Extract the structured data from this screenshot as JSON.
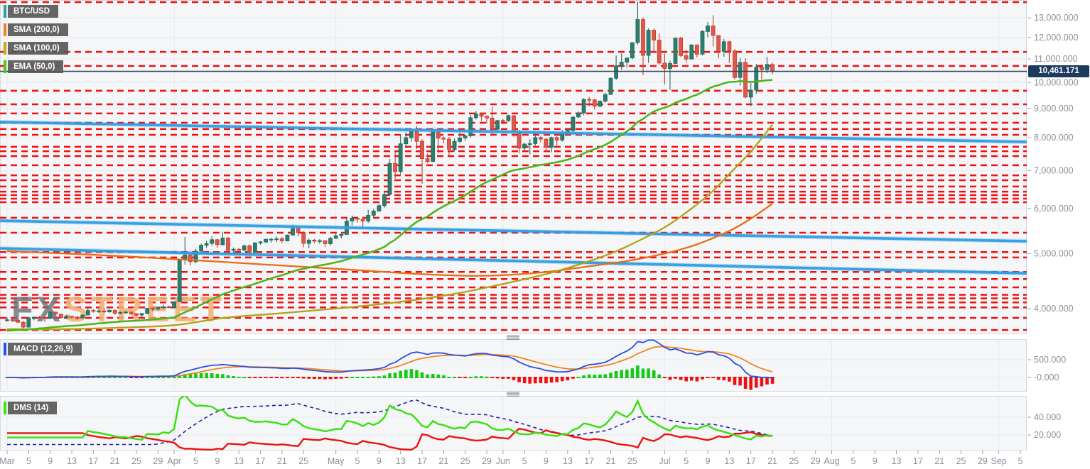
{
  "legend": {
    "main": [
      {
        "label": "BTC/USD",
        "color": "#2aa49a"
      },
      {
        "label": "SMA (200,0)",
        "color": "#f07d28"
      },
      {
        "label": "SMA (100,0)",
        "color": "#bfae12"
      },
      {
        "label": "EMA (50,0)",
        "color": "#52c41a"
      }
    ],
    "macd": {
      "label": "MACD (12,26,9)",
      "color": "#2153f5"
    },
    "dms": {
      "label": "DMS (14)",
      "color": "#39e510"
    }
  },
  "watermark": {
    "part1": "FX",
    "part2": "STREET"
  },
  "price_badge": "10,461.171",
  "axes": {
    "price_ticks": [
      {
        "label": "13,000.000",
        "value": 13000
      },
      {
        "label": "12,000.000",
        "value": 12000
      },
      {
        "label": "11,000.000",
        "value": 11000
      },
      {
        "label": "10,000.000",
        "value": 10000
      },
      {
        "label": "9,000.000",
        "value": 9000
      },
      {
        "label": "8,000.000",
        "value": 8000
      },
      {
        "label": "7,000.000",
        "value": 7000
      },
      {
        "label": "6,000.000",
        "value": 6000
      },
      {
        "label": "5,000.000",
        "value": 5000
      },
      {
        "label": "4,000.000",
        "value": 4000
      }
    ],
    "macd_ticks": [
      {
        "label": "500.000",
        "value": 500
      },
      {
        "label": "-0.000",
        "value": 0
      }
    ],
    "dms_ticks": [
      {
        "label": "40.000",
        "value": 40
      },
      {
        "label": "20.000",
        "value": 20
      }
    ],
    "x_ticks": [
      [
        "Mar",
        0
      ],
      [
        "5",
        4
      ],
      [
        "9",
        8
      ],
      [
        "13",
        12
      ],
      [
        "17",
        16
      ],
      [
        "21",
        20
      ],
      [
        "25",
        24
      ],
      [
        "29",
        28
      ],
      [
        "Apr",
        31
      ],
      [
        "5",
        35
      ],
      [
        "9",
        39
      ],
      [
        "13",
        43
      ],
      [
        "17",
        47
      ],
      [
        "21",
        51
      ],
      [
        "25",
        55
      ],
      [
        "May",
        61
      ],
      [
        "5",
        65
      ],
      [
        "9",
        69
      ],
      [
        "13",
        73
      ],
      [
        "17",
        77
      ],
      [
        "21",
        81
      ],
      [
        "25",
        85
      ],
      [
        "29",
        89
      ],
      [
        "Jun",
        92
      ],
      [
        "5",
        96
      ],
      [
        "9",
        100
      ],
      [
        "13",
        104
      ],
      [
        "17",
        108
      ],
      [
        "21",
        112
      ],
      [
        "25",
        116
      ],
      [
        "Jul",
        122
      ],
      [
        "5",
        126
      ],
      [
        "9",
        130
      ],
      [
        "13",
        134
      ],
      [
        "17",
        138
      ],
      [
        "21",
        142
      ],
      [
        "25",
        146
      ],
      [
        "29",
        150
      ],
      [
        "Aug",
        153
      ],
      [
        "5",
        157
      ],
      [
        "9",
        161
      ],
      [
        "13",
        165
      ],
      [
        "17",
        169
      ],
      [
        "21",
        173
      ],
      [
        "25",
        177
      ],
      [
        "29",
        181
      ],
      [
        "Sep",
        184
      ],
      [
        "5",
        188
      ]
    ]
  },
  "chart_data": {
    "type": "candlestick",
    "title": "BTC/USD",
    "start_date": "2019-03-01",
    "interval": "1D",
    "scale": "log",
    "ylim_price": [
      3620,
      13970
    ],
    "current_price": 10461.171,
    "candles": [
      [
        3814,
        3861,
        3798,
        3823
      ],
      [
        3823,
        3837,
        3792,
        3816
      ],
      [
        3816,
        3823,
        3773,
        3785
      ],
      [
        3785,
        3805,
        3688,
        3711
      ],
      [
        3711,
        3873,
        3702,
        3855
      ],
      [
        3855,
        3878,
        3816,
        3858
      ],
      [
        3858,
        3882,
        3836,
        3857
      ],
      [
        3857,
        3877,
        3789,
        3845
      ],
      [
        3845,
        3957,
        3832,
        3943
      ],
      [
        3943,
        3955,
        3896,
        3911
      ],
      [
        3911,
        3917,
        3842,
        3856
      ],
      [
        3856,
        3900,
        3836,
        3877
      ],
      [
        3877,
        3888,
        3841,
        3862
      ],
      [
        3862,
        3880,
        3820,
        3851
      ],
      [
        3851,
        3907,
        3839,
        3897
      ],
      [
        3897,
        4010,
        3891,
        3970
      ],
      [
        3970,
        3988,
        3935,
        3961
      ],
      [
        3961,
        3994,
        3930,
        3963
      ],
      [
        3963,
        3991,
        3926,
        3947
      ],
      [
        3947,
        3989,
        3932,
        3973
      ],
      [
        3973,
        3983,
        3905,
        3925
      ],
      [
        3925,
        3953,
        3911,
        3940
      ],
      [
        3940,
        3957,
        3918,
        3944
      ],
      [
        3944,
        3954,
        3897,
        3918
      ],
      [
        3918,
        3928,
        3873,
        3897
      ],
      [
        3897,
        3929,
        3868,
        3921
      ],
      [
        3921,
        4008,
        3912,
        4004
      ],
      [
        4004,
        4018,
        3960,
        3994
      ],
      [
        3994,
        4027,
        3964,
        4026
      ],
      [
        4026,
        4069,
        3986,
        4029
      ],
      [
        4029,
        4047,
        4008,
        4016
      ],
      [
        4016,
        4117,
        4011,
        4113
      ],
      [
        4113,
        4891,
        4106,
        4879
      ],
      [
        4879,
        5345,
        4780,
        4973
      ],
      [
        4973,
        5041,
        4765,
        4837
      ],
      [
        4837,
        5090,
        4812,
        5051
      ],
      [
        5051,
        5201,
        5011,
        5171
      ],
      [
        5171,
        5268,
        5111,
        5208
      ],
      [
        5208,
        5361,
        5155,
        5288
      ],
      [
        5288,
        5306,
        5115,
        5183
      ],
      [
        5183,
        5459,
        5165,
        5326
      ],
      [
        5326,
        5348,
        4981,
        5065
      ],
      [
        5065,
        5124,
        4998,
        5087
      ],
      [
        5087,
        5112,
        5028,
        5067
      ],
      [
        5067,
        5188,
        5051,
        5160
      ],
      [
        5160,
        5186,
        4960,
        5021
      ],
      [
        5021,
        5237,
        5005,
        5220
      ],
      [
        5220,
        5265,
        5180,
        5240
      ],
      [
        5240,
        5319,
        5208,
        5296
      ],
      [
        5296,
        5329,
        5226,
        5299
      ],
      [
        5299,
        5357,
        5238,
        5307
      ],
      [
        5307,
        5348,
        5216,
        5262
      ],
      [
        5262,
        5398,
        5252,
        5390
      ],
      [
        5390,
        5620,
        5370,
        5536
      ],
      [
        5536,
        5580,
        5361,
        5441
      ],
      [
        5441,
        5470,
        5128,
        5210
      ],
      [
        5210,
        5310,
        5111,
        5279
      ],
      [
        5279,
        5311,
        5211,
        5258
      ],
      [
        5258,
        5299,
        5202,
        5267
      ],
      [
        5267,
        5274,
        5138,
        5204
      ],
      [
        5204,
        5351,
        5162,
        5320
      ],
      [
        5320,
        5410,
        5302,
        5375
      ],
      [
        5375,
        5441,
        5313,
        5402
      ],
      [
        5402,
        5777,
        5391,
        5702
      ],
      [
        5702,
        5836,
        5601,
        5772
      ],
      [
        5772,
        5800,
        5666,
        5746
      ],
      [
        5746,
        5785,
        5551,
        5704
      ],
      [
        5704,
        5969,
        5662,
        5839
      ],
      [
        5839,
        5985,
        5771,
        5940
      ],
      [
        5940,
        6115,
        5921,
        6070
      ],
      [
        6070,
        6430,
        6021,
        6350
      ],
      [
        6350,
        7333,
        6326,
        7204
      ],
      [
        7204,
        7590,
        6777,
        6972
      ],
      [
        6972,
        8099,
        6898,
        7800
      ],
      [
        7800,
        8172,
        7661,
        7994
      ],
      [
        7994,
        8289,
        7871,
        8195
      ],
      [
        8195,
        8388,
        7642,
        7878
      ],
      [
        7878,
        7946,
        6636,
        7344
      ],
      [
        7344,
        7495,
        7211,
        7262
      ],
      [
        7262,
        8288,
        7239,
        8180
      ],
      [
        8180,
        8218,
        7512,
        7978
      ],
      [
        7978,
        8033,
        7811,
        7948
      ],
      [
        7948,
        8020,
        7451,
        7627
      ],
      [
        7627,
        7971,
        7561,
        7876
      ],
      [
        7876,
        8166,
        7818,
        7987
      ],
      [
        7987,
        8089,
        7891,
        8052
      ],
      [
        8052,
        8761,
        8001,
        8673
      ],
      [
        8673,
        8907,
        8611,
        8805
      ],
      [
        8805,
        8819,
        8556,
        8719
      ],
      [
        8719,
        8755,
        8462,
        8659
      ],
      [
        8659,
        9065,
        8100,
        8277
      ],
      [
        8277,
        8586,
        8172,
        8574
      ],
      [
        8574,
        8625,
        8441,
        8564
      ],
      [
        8564,
        8783,
        8528,
        8742
      ],
      [
        8742,
        8760,
        8027,
        8208
      ],
      [
        8208,
        8249,
        7507,
        7666
      ],
      [
        7666,
        7833,
        7585,
        7790
      ],
      [
        7790,
        7951,
        7476,
        7806
      ],
      [
        7806,
        8140,
        7745,
        7999
      ],
      [
        7999,
        8056,
        7853,
        7948
      ],
      [
        7948,
        7981,
        7551,
        7688
      ],
      [
        7688,
        8030,
        7533,
        8000
      ],
      [
        8000,
        8040,
        7756,
        7918
      ],
      [
        7918,
        8255,
        7874,
        8145
      ],
      [
        8145,
        8295,
        8055,
        8230
      ],
      [
        8230,
        8715,
        8100,
        8693
      ],
      [
        8693,
        8890,
        8661,
        8840
      ],
      [
        8840,
        9388,
        8754,
        9338
      ],
      [
        9338,
        9436,
        9076,
        9320
      ],
      [
        9320,
        9347,
        8964,
        9081
      ],
      [
        9081,
        9296,
        9041,
        9273
      ],
      [
        9273,
        9593,
        9210,
        9527
      ],
      [
        9527,
        10205,
        9512,
        10175
      ],
      [
        10175,
        11157,
        10101,
        10701
      ],
      [
        10701,
        11245,
        10522,
        10855
      ],
      [
        10855,
        11045,
        10621,
        11045
      ],
      [
        11045,
        11754,
        10981,
        11754
      ],
      [
        11754,
        13868,
        11659,
        12907
      ],
      [
        12907,
        13017,
        10300,
        11162
      ],
      [
        11162,
        12448,
        10832,
        12360
      ],
      [
        12360,
        12445,
        11310,
        11875
      ],
      [
        11875,
        12195,
        10750,
        10818
      ],
      [
        10818,
        11245,
        9921,
        10583
      ],
      [
        10583,
        10916,
        9704,
        10801
      ],
      [
        10801,
        11976,
        10771,
        11976
      ],
      [
        11976,
        12036,
        11079,
        11151
      ],
      [
        11151,
        11440,
        10831,
        10996
      ],
      [
        10996,
        11677,
        10983,
        11646
      ],
      [
        11646,
        11665,
        11072,
        11213
      ],
      [
        11213,
        12371,
        11163,
        12293
      ],
      [
        12293,
        12780,
        12015,
        12573
      ],
      [
        12573,
        13129,
        11569,
        12099
      ],
      [
        12099,
        12103,
        11030,
        11343
      ],
      [
        11343,
        11929,
        11100,
        11797
      ],
      [
        11797,
        11835,
        10827,
        11363
      ],
      [
        11363,
        11447,
        10118,
        10204
      ],
      [
        10204,
        11047,
        9877,
        10850
      ],
      [
        10850,
        11035,
        9377,
        9423
      ],
      [
        9423,
        9988,
        9082,
        9692
      ],
      [
        9692,
        10777,
        9555,
        10636
      ],
      [
        10636,
        10757,
        10126,
        10532
      ],
      [
        10532,
        11093,
        10387,
        10759
      ],
      [
        10759,
        10833,
        10333,
        10461.171
      ]
    ],
    "overlays": {
      "ema50": {
        "period": 50,
        "seed": 3650,
        "color": "#4cb318"
      },
      "sma100": {
        "period": 100,
        "color": "#b2a215",
        "anchors": [
          [
            0,
            3680
          ],
          [
            10,
            3680
          ],
          [
            20,
            3700
          ],
          [
            31,
            3740
          ],
          [
            40,
            3850
          ],
          [
            50,
            3920
          ],
          [
            61,
            4000
          ],
          [
            70,
            4080
          ],
          [
            77,
            4160
          ],
          [
            85,
            4280
          ],
          [
            92,
            4420
          ],
          [
            100,
            4600
          ],
          [
            106,
            4780
          ],
          [
            112,
            5000
          ],
          [
            116,
            5200
          ],
          [
            122,
            5560
          ],
          [
            127,
            6000
          ],
          [
            131,
            6450
          ],
          [
            134,
            6900
          ],
          [
            138,
            7560
          ],
          [
            142,
            8430
          ]
        ]
      },
      "sma200": {
        "period": 200,
        "color": "#ec6b12",
        "anchors": [
          [
            0,
            5050
          ],
          [
            15,
            4980
          ],
          [
            31,
            4890
          ],
          [
            45,
            4800
          ],
          [
            61,
            4700
          ],
          [
            75,
            4610
          ],
          [
            85,
            4570
          ],
          [
            92,
            4580
          ],
          [
            100,
            4640
          ],
          [
            106,
            4720
          ],
          [
            115,
            4850
          ],
          [
            122,
            5000
          ],
          [
            128,
            5190
          ],
          [
            134,
            5480
          ],
          [
            138,
            5760
          ],
          [
            142,
            6120
          ]
        ]
      },
      "trendlines": [
        {
          "price_left": 8520,
          "price_right": 7860,
          "color": "#2f9ee3"
        },
        {
          "price_left": 5710,
          "price_right": 5255,
          "color": "#2f9ee3"
        },
        {
          "price_left": 5105,
          "price_right": 4615,
          "color": "#2f9ee3"
        }
      ],
      "red_levels": [
        13850,
        11320,
        10690,
        9670,
        9155,
        8820,
        8495,
        8280,
        8090,
        7705,
        7570,
        7420,
        7150,
        6865,
        6730,
        6560,
        6425,
        6335,
        6245,
        6155,
        5780,
        5440,
        5030,
        4920,
        4640,
        4510,
        4360,
        4230,
        4170,
        4100,
        4020,
        3852,
        3668
      ],
      "current_price_line": {
        "value": 10461.171,
        "color": "#34455e"
      }
    },
    "indicators": {
      "macd": {
        "fast": 12,
        "slow": 26,
        "signal": 9,
        "line_color": "#2b4ede",
        "signal_color": "#f58220",
        "hist_up": "#16c916",
        "hist_down": "#ed1111",
        "axis_per_500px": 25
      },
      "dms": {
        "period": 14,
        "di_plus_color": "#37e00e",
        "di_minus_color": "#e9150d",
        "adx_color": "#2222aa"
      }
    }
  }
}
